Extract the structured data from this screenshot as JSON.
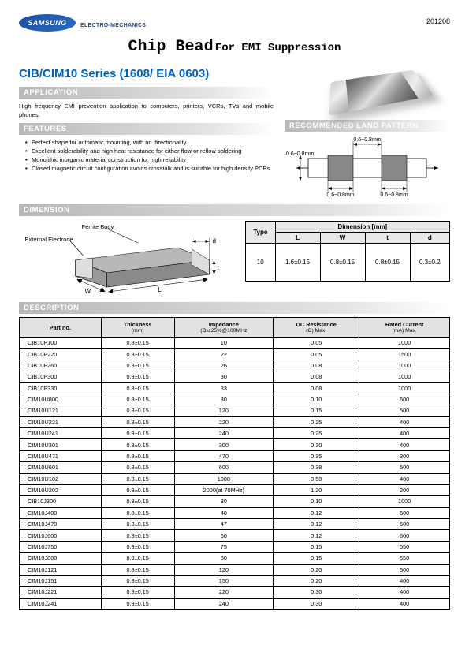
{
  "header": {
    "logo_text": "SAMSUNG",
    "logo_sub": "ELECTRO-MECHANICS",
    "page_code": "201208"
  },
  "title": {
    "main": "Chip Bead",
    "sub": "For EMI Suppression"
  },
  "series_title": "CIB/CIM10 Series (1608/ EIA 0603)",
  "sections": {
    "application": "APPLICATION",
    "features": "FEATURES",
    "land_pattern": "RECOMMENDED LAND PATTERN",
    "dimension": "DIMENSION",
    "description": "DESCRIPTION"
  },
  "application_text": "High frequency EMI prevention application to computers, printers, VCRs, TVs and mobile phones.",
  "features_list": [
    "Perfect shape for automatic mounting, with no directionality.",
    "Excellent solderability and high heat resistance for either flow or reflow soldering",
    "Monolithic inorganic material construction for high reliability",
    "Closed magnetic circuit configuration avoids crosstalk and is suitable for high density PCBs."
  ],
  "land_labels": {
    "top": "0.6~0.8mm",
    "left": "0.6~0.8mm",
    "bot1": "0.6~0.8mm",
    "bot2": "0.6~0.8mm"
  },
  "dim_labels": {
    "ferrite": "Ferrite Body",
    "electrode": "External Electrode"
  },
  "dim_table": {
    "type_hdr": "Type",
    "dim_hdr": "Dimension [mm]",
    "cols": [
      "L",
      "W",
      "t",
      "d"
    ],
    "row": {
      "type": "10",
      "L": "1.6±0.15",
      "W": "0.8±0.15",
      "t": "0.8±0.15",
      "d": "0.3±0.2"
    }
  },
  "desc_table": {
    "headers": {
      "part": "Part no.",
      "thickness": "Thickness",
      "thickness_sub": "(mm)",
      "impedance": "Impedance",
      "impedance_sub": "(Ω)±25%@100MHz",
      "dcr": "DC Resistance",
      "dcr_sub": "(Ω) Max.",
      "current": "Rated Current",
      "current_sub": "(mA) Max."
    },
    "rows": [
      {
        "part": "CIB10P100",
        "t": "0.8±0.15",
        "imp": "10",
        "dcr": "0.05",
        "cur": "1000"
      },
      {
        "part": "CIB10P220",
        "t": "0.8±0.15",
        "imp": "22",
        "dcr": "0.05",
        "cur": "1500"
      },
      {
        "part": "CIB10P260",
        "t": "0.8±0.15",
        "imp": "26",
        "dcr": "0.08",
        "cur": "1000"
      },
      {
        "part": "CIB10P300",
        "t": "0.8±0.15",
        "imp": "30",
        "dcr": "0.08",
        "cur": "1000"
      },
      {
        "part": "CIB10P330",
        "t": "0.8±0.15",
        "imp": "33",
        "dcr": "0.08",
        "cur": "1000"
      },
      {
        "part": "CIM10U800",
        "t": "0.8±0.15",
        "imp": "80",
        "dcr": "0.10",
        "cur": "600"
      },
      {
        "part": "CIM10U121",
        "t": "0.8±0.15",
        "imp": "120",
        "dcr": "0.15",
        "cur": "500"
      },
      {
        "part": "CIM10U221",
        "t": "0.8±0.15",
        "imp": "220",
        "dcr": "0.25",
        "cur": "400"
      },
      {
        "part": "CIM10U241",
        "t": "0.8±0.15",
        "imp": "240",
        "dcr": "0.25",
        "cur": "400"
      },
      {
        "part": "CIM10U301",
        "t": "0.8±0.15",
        "imp": "300",
        "dcr": "0.30",
        "cur": "400"
      },
      {
        "part": "CIM10U471",
        "t": "0.8±0.15",
        "imp": "470",
        "dcr": "0.35",
        "cur": "300"
      },
      {
        "part": "CIM10U601",
        "t": "0.8±0.15",
        "imp": "600",
        "dcr": "0.38",
        "cur": "500"
      },
      {
        "part": "CIM10U102",
        "t": "0.8±0.15",
        "imp": "1000",
        "dcr": "0.50",
        "cur": "400"
      },
      {
        "part": "CIM10U202",
        "t": "0.8±0.15",
        "imp": "2000(at 70MHz)",
        "dcr": "1.20",
        "cur": "200"
      },
      {
        "part": "CIB10J300",
        "t": "0.8±0.15",
        "imp": "30",
        "dcr": "0.10",
        "cur": "1000"
      },
      {
        "part": "CIM10J400",
        "t": "0.8±0.15",
        "imp": "40",
        "dcr": "0.12",
        "cur": "600"
      },
      {
        "part": "CIM10J470",
        "t": "0.8±0.15",
        "imp": "47",
        "dcr": "0.12",
        "cur": "600"
      },
      {
        "part": "CIM10J600",
        "t": "0.8±0.15",
        "imp": "60",
        "dcr": "0.12",
        "cur": "600"
      },
      {
        "part": "CIM10J750",
        "t": "0.8±0.15",
        "imp": "75",
        "dcr": "0.15",
        "cur": "550"
      },
      {
        "part": "CIM10J800",
        "t": "0.8±0.15",
        "imp": "80",
        "dcr": "0.15",
        "cur": "550"
      },
      {
        "part": "CIM10J121",
        "t": "0.8±0.15",
        "imp": "120",
        "dcr": "0.20",
        "cur": "500"
      },
      {
        "part": "CIM10J151",
        "t": "0.8±0.15",
        "imp": "150",
        "dcr": "0.20",
        "cur": "400"
      },
      {
        "part": "CIM10J221",
        "t": "0.8±0.15",
        "imp": "220",
        "dcr": "0.30",
        "cur": "400"
      },
      {
        "part": "CIM10J241",
        "t": "0.8±0.15",
        "imp": "240",
        "dcr": "0.30",
        "cur": "400"
      }
    ]
  },
  "colors": {
    "brand_blue": "#1a4fa0",
    "link_blue": "#0060c0",
    "section_gray": "#b8b8b8",
    "table_header_bg": "#e2e2e2"
  }
}
